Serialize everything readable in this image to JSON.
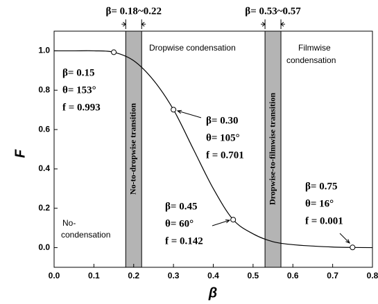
{
  "chart_data": {
    "type": "line",
    "xlabel": "β",
    "ylabel": "F",
    "xlim": [
      0,
      0.8
    ],
    "ylim": [
      -0.1,
      1.1
    ],
    "xticks": [
      {
        "value": 0,
        "label": "0.0"
      },
      0.1,
      0.2,
      0.3,
      0.4,
      0.5,
      0.6,
      0.7,
      0.8
    ],
    "yticks": [
      {
        "value": 0,
        "label": "0.0"
      },
      0.2,
      0.4,
      0.6,
      0.8,
      {
        "value": 1,
        "label": "1.0"
      }
    ],
    "series": [
      {
        "color": "#000000",
        "x": [
          0,
          0.05,
          0.1,
          0.15,
          0.2,
          0.25,
          0.3,
          0.35,
          0.4,
          0.45,
          0.5,
          0.55,
          0.6,
          0.65,
          0.7,
          0.75,
          0.8
        ],
        "values": [
          1.0,
          1.0,
          1.0,
          0.993,
          0.95,
          0.85,
          0.701,
          0.5,
          0.3,
          0.142,
          0.07,
          0.03,
          0.015,
          0.008,
          0.003,
          0.001,
          0.0
        ]
      }
    ],
    "markers": {
      "x": [
        0.15,
        0.3,
        0.45,
        0.75
      ],
      "values": [
        0.993,
        0.701,
        0.142,
        0.001
      ]
    },
    "bands": [
      {
        "range": [
          0.18,
          0.22
        ],
        "label": "No-to-dropwise transition",
        "width_label": "β= 0.18~0.22",
        "color": "#b4b4b4"
      },
      {
        "range": [
          0.53,
          0.57
        ],
        "label": "Dropwise-to-filmwise transition",
        "width_label": "β= 0.53~0.57",
        "color": "#b4b4b4"
      }
    ],
    "regions": [
      {
        "lines": [
          "Dropwise condensation"
        ]
      },
      {
        "lines": [
          "Filmwise",
          "condensation"
        ]
      },
      {
        "lines": [
          "No-",
          "condensation"
        ]
      }
    ],
    "annotations": [
      {
        "lines": [
          "β= 0.15",
          "θ= 153°",
          "f = 0.993"
        ]
      },
      {
        "lines": [
          "β= 0.30",
          "θ= 105°",
          "f = 0.701"
        ]
      },
      {
        "lines": [
          "β= 0.45",
          "θ= 60°",
          "f = 0.142"
        ]
      },
      {
        "lines": [
          "β= 0.75",
          "θ= 16°",
          "f = 0.001"
        ]
      }
    ]
  }
}
